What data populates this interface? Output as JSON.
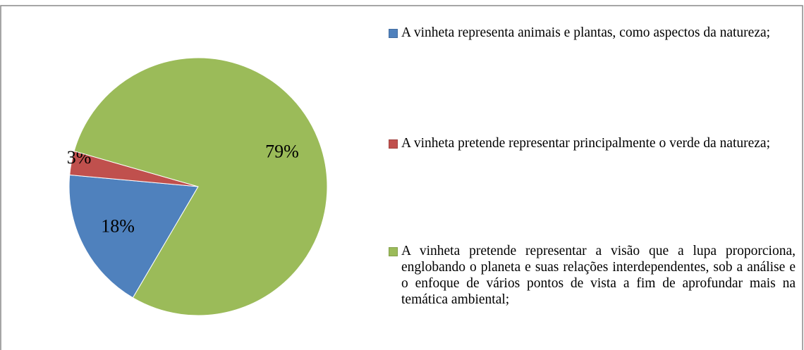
{
  "chart_data": {
    "type": "pie",
    "categories": [
      "A vinheta representa animais e plantas, como aspectos da natureza;",
      "A vinheta pretende representar principalmente o verde da natureza;",
      "A vinheta pretende representar a visão que a lupa proporciona, englobando o planeta e suas relações interdependentes, sob a análise e o enfoque de vários pontos de vista a fim de aprofundar mais na temática ambiental;"
    ],
    "values": [
      18,
      3,
      79
    ],
    "value_labels": [
      "18%",
      "3%",
      "79%"
    ],
    "colors": [
      "#4f81bd",
      "#c0504d",
      "#9bbb59"
    ],
    "legend": "right"
  }
}
